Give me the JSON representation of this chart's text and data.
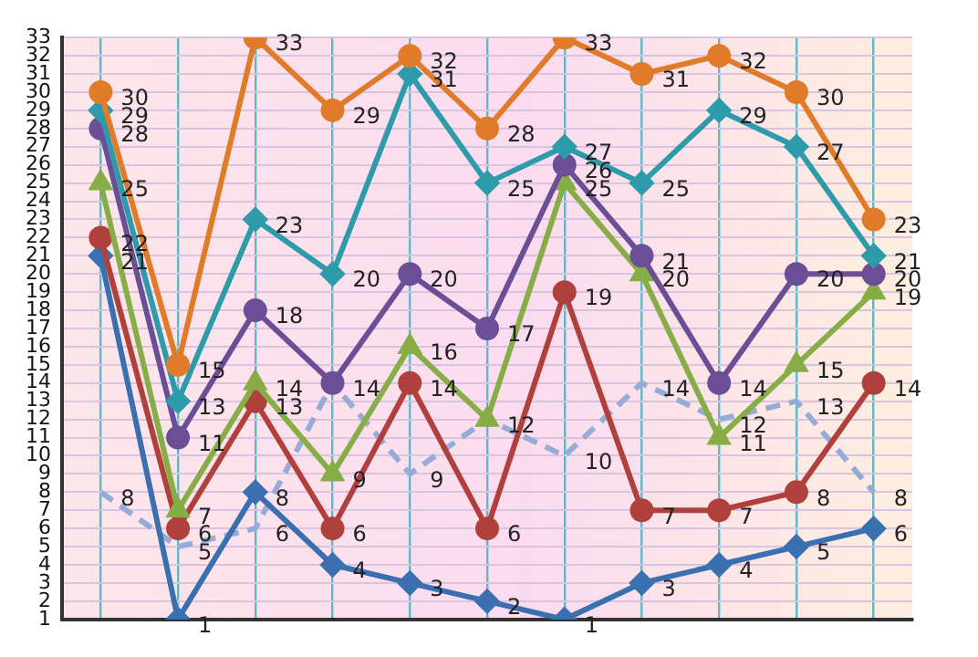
{
  "chart_data": {
    "type": "line",
    "categories": [
      null,
      null,
      null,
      null,
      null,
      null,
      null,
      null,
      null,
      null,
      null
    ],
    "series": [
      {
        "color": "#e07b2a",
        "marker": "circle",
        "values": [
          30,
          15,
          33,
          29,
          32,
          28,
          33,
          31,
          32,
          30,
          23
        ]
      },
      {
        "color": "#2e9bab",
        "marker": "diamond",
        "values": [
          29,
          13,
          23,
          20,
          31,
          25,
          27,
          25,
          29,
          27,
          21
        ]
      },
      {
        "color": "#6b4f96",
        "marker": "circle",
        "values": [
          28,
          11,
          18,
          14,
          20,
          17,
          26,
          21,
          14,
          20,
          20
        ]
      },
      {
        "color": "#86ad46",
        "marker": "triangle",
        "values": [
          25,
          7,
          14,
          9,
          16,
          12,
          25,
          20,
          11,
          15,
          19
        ]
      },
      {
        "color": "#b0403c",
        "marker": "circle",
        "values": [
          22,
          6,
          13,
          6,
          14,
          6,
          19,
          7,
          7,
          8,
          14
        ]
      },
      {
        "color": "#3a6fb0",
        "marker": "diamond",
        "values": [
          21,
          1,
          8,
          4,
          3,
          2,
          1,
          3,
          4,
          5,
          6
        ]
      },
      {
        "color": "#95add6",
        "marker": "none",
        "line_style": "dashed",
        "values": [
          8,
          5,
          6,
          14,
          9,
          12,
          10,
          14,
          12,
          13,
          8
        ],
        "value_labels": [
          "8",
          "5",
          "6",
          null,
          "9",
          null,
          "10",
          "14",
          "12",
          "13",
          "8"
        ]
      }
    ],
    "ylim": [
      1,
      33
    ],
    "yticks": [
      1,
      2,
      3,
      4,
      5,
      6,
      7,
      8,
      9,
      10,
      11,
      12,
      13,
      14,
      15,
      16,
      17,
      18,
      19,
      20,
      21,
      22,
      23,
      24,
      25,
      26,
      27,
      28,
      29,
      30,
      31,
      32,
      33
    ],
    "grid": true,
    "legend": false,
    "tick_labels": "y",
    "data_labels": true
  }
}
